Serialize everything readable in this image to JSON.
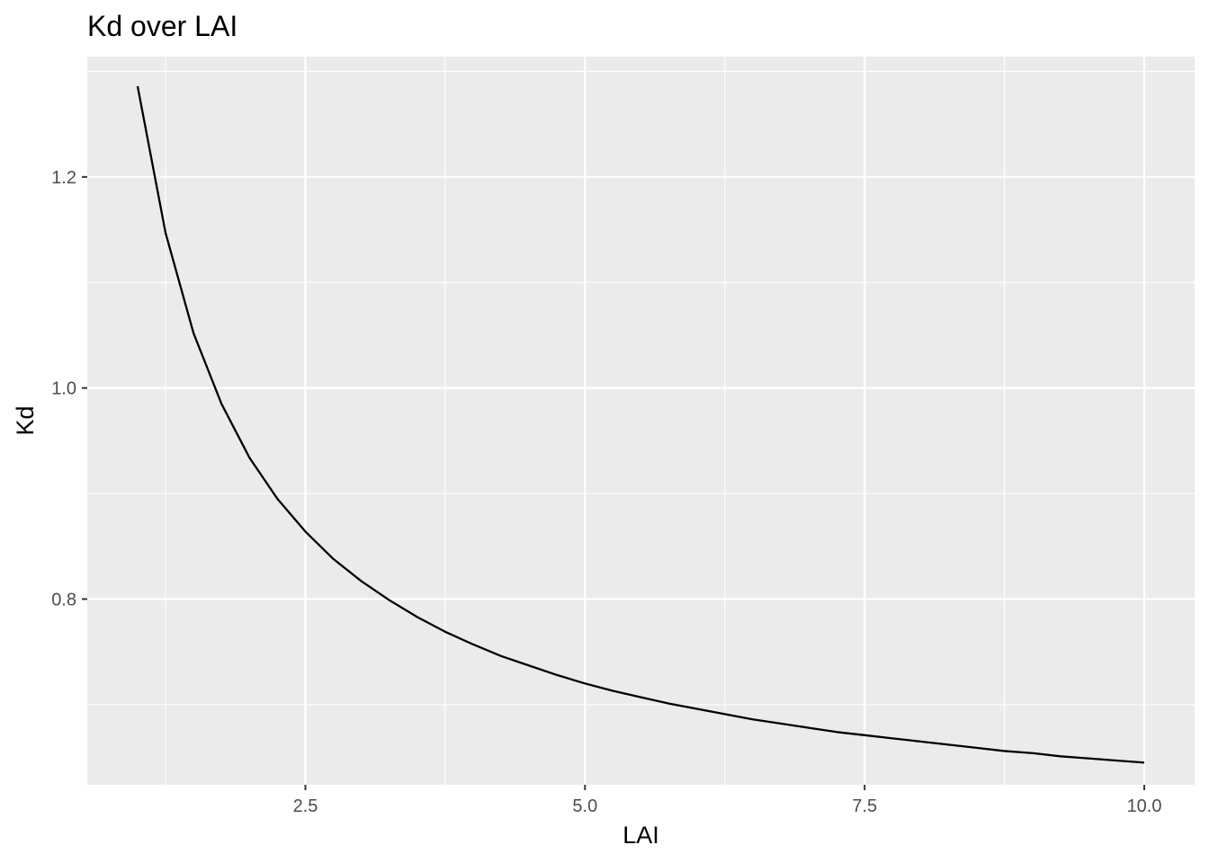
{
  "chart_data": {
    "type": "line",
    "title": "Kd over LAI",
    "xlabel": "LAI",
    "ylabel": "Kd",
    "xlim": [
      0.55,
      10.45
    ],
    "ylim": [
      0.624,
      1.314
    ],
    "x_ticks": [
      2.5,
      5.0,
      7.5,
      10.0
    ],
    "x_tick_labels": [
      "2.5",
      "5.0",
      "7.5",
      "10.0"
    ],
    "y_ticks": [
      0.8,
      1.0,
      1.2
    ],
    "y_tick_labels": [
      "0.8",
      "1.0",
      "1.2"
    ],
    "grid": true,
    "legend": "none",
    "colors": {
      "panel": "#ebebeb",
      "grid": "#ffffff",
      "line": "#000000",
      "tick_text": "#4d4d4d"
    },
    "series": [
      {
        "x": [
          1.0,
          1.25,
          1.5,
          1.75,
          2.0,
          2.25,
          2.5,
          2.75,
          3.0,
          3.25,
          3.5,
          3.75,
          4.0,
          4.25,
          4.5,
          4.75,
          5.0,
          5.25,
          5.5,
          5.75,
          6.0,
          6.25,
          6.5,
          6.75,
          7.0,
          7.25,
          7.5,
          7.75,
          8.0,
          8.25,
          8.5,
          8.75,
          9.0,
          9.25,
          9.5,
          9.75,
          10.0
        ],
        "y": [
          1.286,
          1.147,
          1.052,
          0.985,
          0.934,
          0.895,
          0.864,
          0.838,
          0.817,
          0.799,
          0.783,
          0.769,
          0.757,
          0.746,
          0.737,
          0.728,
          0.72,
          0.713,
          0.707,
          0.701,
          0.696,
          0.691,
          0.686,
          0.682,
          0.678,
          0.674,
          0.671,
          0.668,
          0.665,
          0.662,
          0.659,
          0.656,
          0.654,
          0.651,
          0.649,
          0.647,
          0.645
        ]
      }
    ]
  }
}
